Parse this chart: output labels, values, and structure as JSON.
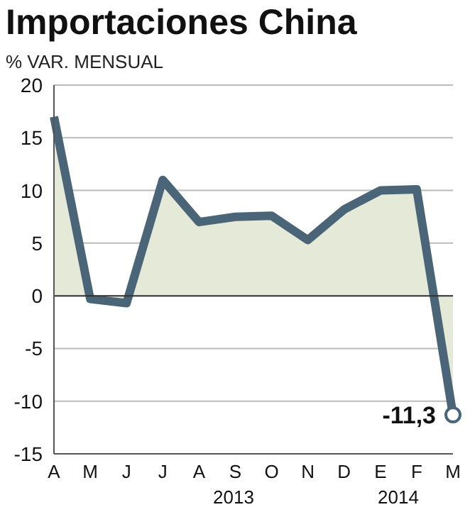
{
  "chart_data": {
    "type": "area",
    "title": "Importaciones China",
    "subtitle": "% VAR. MENSUAL",
    "categories": [
      "A",
      "M",
      "J",
      "J",
      "A",
      "S",
      "O",
      "N",
      "D",
      "E",
      "F",
      "M"
    ],
    "series": [
      {
        "color": "#4a6478",
        "values": [
          17,
          -0.3,
          -0.7,
          11,
          7,
          7.5,
          7.6,
          5.3,
          8.2,
          10,
          10.1,
          -11.3
        ],
        "value_labels": [
          null,
          null,
          null,
          null,
          null,
          null,
          null,
          null,
          null,
          null,
          null,
          "-11,3"
        ]
      }
    ],
    "ylim": [
      -15,
      20
    ],
    "yticks": [
      -15,
      -10,
      -5,
      0,
      5,
      10,
      15,
      20
    ],
    "grid": "y",
    "annotations": [
      "2013",
      "2014"
    ]
  }
}
